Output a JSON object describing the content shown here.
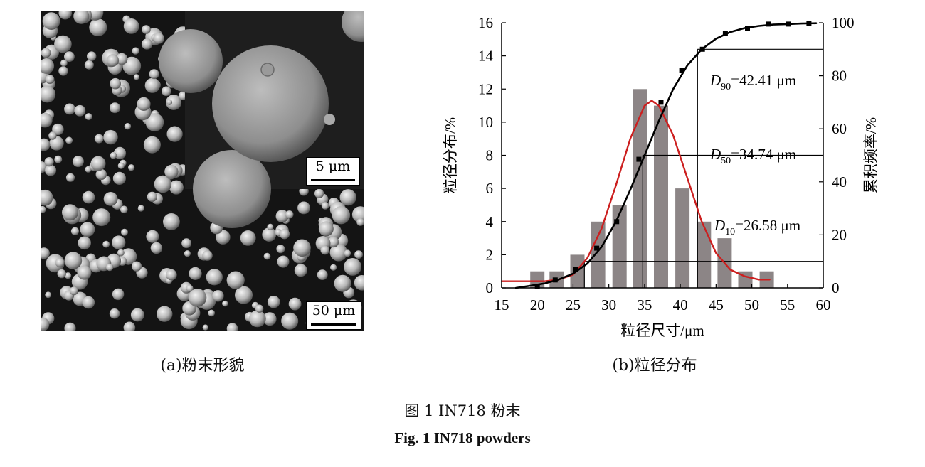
{
  "left_panel": {
    "scale_bar_main": "50 μm",
    "scale_bar_inset": "5 μm",
    "caption": "(a)粉末形貌"
  },
  "right_panel": {
    "caption": "(b)粒径分布"
  },
  "figure": {
    "caption_cn": "图 1 IN718 粉末",
    "caption_en": "Fig. 1 IN718 powders"
  },
  "colors": {
    "bars": "#8c8586",
    "fit_curve": "#cc1f1f",
    "cumulative_curve": "#000000"
  },
  "chart_data": {
    "type": "bar",
    "xlabel": "粒径尺寸/μm",
    "ylabel": "粒径分布/%",
    "y2label": "累积频率/%",
    "xlim": [
      15,
      60
    ],
    "ylim": [
      0,
      16
    ],
    "y2lim": [
      0,
      100
    ],
    "xticks": [
      15,
      20,
      25,
      30,
      35,
      40,
      45,
      50,
      55,
      60
    ],
    "yticks": [
      0,
      2,
      4,
      6,
      8,
      10,
      12,
      14,
      16
    ],
    "y2ticks": [
      0,
      20,
      40,
      60,
      80,
      100
    ],
    "series": [
      {
        "kind": "bar",
        "x": [
          20,
          22.7,
          25.6,
          28.5,
          31.5,
          34.4,
          37.3,
          40.3,
          43.3,
          46.2,
          49.1,
          52.1
        ],
        "values": [
          1,
          1,
          2,
          4,
          5,
          12,
          11,
          6,
          4,
          3,
          1,
          1
        ]
      },
      {
        "kind": "line",
        "axis": "left",
        "x": [
          15,
          17,
          19,
          21,
          23,
          25,
          27,
          29,
          31,
          33,
          35,
          36,
          37,
          39,
          41,
          43,
          45,
          47,
          49,
          51,
          52.5
        ],
        "values": [
          0.4,
          0.4,
          0.4,
          0.4,
          0.5,
          0.8,
          1.8,
          3.6,
          6.2,
          9.0,
          11.0,
          11.3,
          11.0,
          9.2,
          6.6,
          4.0,
          2.1,
          1.1,
          0.7,
          0.5,
          0.5
        ]
      },
      {
        "kind": "line",
        "axis": "right",
        "x": [
          17,
          19,
          21,
          23,
          25,
          27,
          29,
          31,
          33,
          35,
          37,
          39,
          41,
          43,
          45,
          47,
          49,
          51,
          53,
          55,
          57,
          59
        ],
        "values": [
          0,
          0.8,
          1.7,
          3.2,
          5.4,
          9.2,
          15.5,
          25,
          37,
          50,
          63,
          75,
          84,
          90,
          94,
          96.5,
          98,
          98.8,
          99.3,
          99.5,
          99.7,
          99.8
        ]
      },
      {
        "kind": "scatter",
        "axis": "right",
        "x": [
          20,
          22.5,
          25.3,
          28.3,
          31.1,
          34.2,
          37.3,
          40.2,
          43.1,
          46.3,
          49.4,
          52.3,
          55.1,
          58
        ],
        "values": [
          0.5,
          3,
          7,
          15,
          25,
          48.5,
          70,
          82,
          90,
          96,
          98,
          99.5,
          99.5,
          99.7
        ]
      }
    ],
    "annotations": [
      {
        "label": "D",
        "sub": "90",
        "text": "=42.41 μm",
        "x": 42.41,
        "cum": 90
      },
      {
        "label": "D",
        "sub": "50",
        "text": "=34.74 μm",
        "x": 34.74,
        "cum": 50
      },
      {
        "label": "D",
        "sub": "10",
        "text": "=26.58 μm",
        "x": 26.58,
        "cum": 10
      }
    ]
  }
}
